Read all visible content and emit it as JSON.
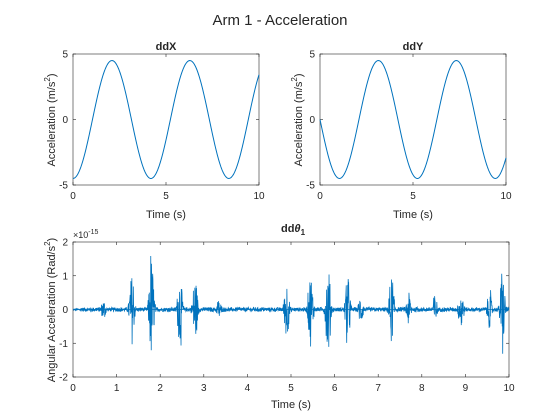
{
  "figure": {
    "title": "Arm 1 - Acceleration"
  },
  "chart_data": [
    {
      "type": "line",
      "title": "ddX",
      "xlabel": "Time (s)",
      "ylabel_main": "Acceleration (m/s",
      "ylabel_sup": "2",
      "ylabel_tail": ")",
      "xlim": [
        0,
        10
      ],
      "ylim": [
        -5,
        5
      ],
      "xticks": [
        0,
        5,
        10
      ],
      "yticks": [
        -5,
        0,
        5
      ],
      "grid": false,
      "series": [
        {
          "function": "-4.5*cos(1.5*t)",
          "t_range": [
            0,
            10
          ],
          "color": "#0072BD"
        }
      ]
    },
    {
      "type": "line",
      "title": "ddY",
      "xlabel": "Time (s)",
      "ylabel_main": "Acceleration (m/s",
      "ylabel_sup": "2",
      "ylabel_tail": ")",
      "xlim": [
        0,
        10
      ],
      "ylim": [
        -5,
        5
      ],
      "xticks": [
        0,
        5,
        10
      ],
      "yticks": [
        -5,
        0,
        5
      ],
      "grid": false,
      "series": [
        {
          "function": "-4.5*sin(1.5*t)",
          "t_range": [
            0,
            10
          ],
          "color": "#0072BD"
        }
      ]
    },
    {
      "type": "line",
      "title_main": "dd",
      "title_greek": "θ",
      "title_sub": "1",
      "xlabel": "Time (s)",
      "ylabel_main": "Angular Acceleration (Rad/s",
      "ylabel_sup": "2",
      "ylabel_tail": ")",
      "exponent_base": "×10",
      "exponent_power": "-15",
      "xlim": [
        0,
        10
      ],
      "ylim": [
        -2,
        2
      ],
      "xticks": [
        0,
        1,
        2,
        3,
        4,
        5,
        6,
        7,
        8,
        9,
        10
      ],
      "yticks": [
        -2,
        -1,
        0,
        1,
        2
      ],
      "grid": false,
      "series": [
        {
          "description": "numerical noise near zero, scale ×10^-15",
          "color": "#0072BD",
          "bursts": [
            {
              "t": 0.7,
              "amp": 0.3
            },
            {
              "t": 1.35,
              "amp": 1.05
            },
            {
              "t": 1.8,
              "amp": 1.55
            },
            {
              "t": 2.45,
              "amp": 1.05
            },
            {
              "t": 2.8,
              "amp": 1.0
            },
            {
              "t": 3.35,
              "amp": 0.3
            },
            {
              "t": 4.9,
              "amp": 0.9
            },
            {
              "t": 5.45,
              "amp": 1.1
            },
            {
              "t": 5.85,
              "amp": 1.35
            },
            {
              "t": 6.3,
              "amp": 1.0
            },
            {
              "t": 6.6,
              "amp": 0.45
            },
            {
              "t": 7.3,
              "amp": 1.0
            },
            {
              "t": 7.7,
              "amp": 0.5
            },
            {
              "t": 8.3,
              "amp": 0.45
            },
            {
              "t": 8.9,
              "amp": 0.7
            },
            {
              "t": 9.55,
              "amp": 0.55
            },
            {
              "t": 9.85,
              "amp": 1.15
            }
          ]
        }
      ]
    }
  ]
}
